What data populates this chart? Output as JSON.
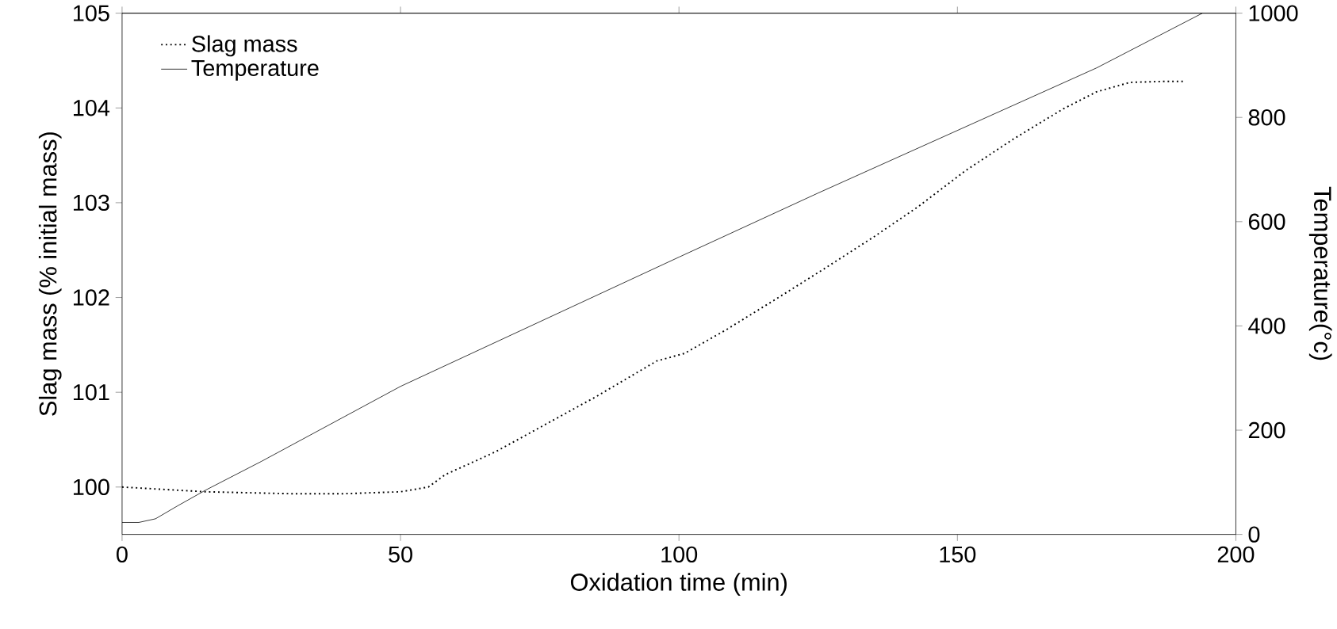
{
  "chart_data": {
    "type": "line",
    "xlabel": "Oxidation time (min)",
    "ylabel": "Slag mass (% initial mass)",
    "y2label": "Temperature(°c)",
    "xlim": [
      0,
      200
    ],
    "xticks": [
      0,
      50,
      100,
      150,
      200
    ],
    "ylim": [
      99.5,
      105
    ],
    "yticks": [
      100,
      101,
      102,
      103,
      104,
      105
    ],
    "y2lim": [
      0,
      1000
    ],
    "y2ticks": [
      0,
      200,
      400,
      600,
      800,
      1000
    ],
    "legend": "top left",
    "grid": false,
    "series": [
      {
        "name": "Slag mass",
        "color": "#000000",
        "line_style": "dotted",
        "x": [
          0,
          15,
          30,
          40,
          50,
          55,
          58,
          67,
          76,
          85,
          96,
          101,
          108.5,
          117.6,
          126,
          135,
          143,
          151.5,
          160,
          169,
          175,
          181,
          187,
          191
        ],
        "values": [
          100.0,
          99.95,
          99.93,
          99.93,
          99.95,
          100.0,
          100.13,
          100.37,
          100.66,
          100.95,
          101.33,
          101.41,
          101.66,
          101.99,
          102.3,
          102.64,
          102.96,
          103.34,
          103.67,
          103.99,
          104.17,
          104.27,
          104.28,
          104.28
        ]
      },
      {
        "name": "Temperature",
        "color": "#000000",
        "line_style": "solid",
        "axis": "y2",
        "x": [
          0,
          3,
          6,
          10,
          15,
          25,
          50,
          75,
          100,
          125,
          150,
          175,
          194
        ],
        "values": [
          23,
          23,
          30,
          55,
          85,
          140,
          284,
          408,
          532,
          655,
          775,
          895,
          1000
        ]
      }
    ]
  }
}
